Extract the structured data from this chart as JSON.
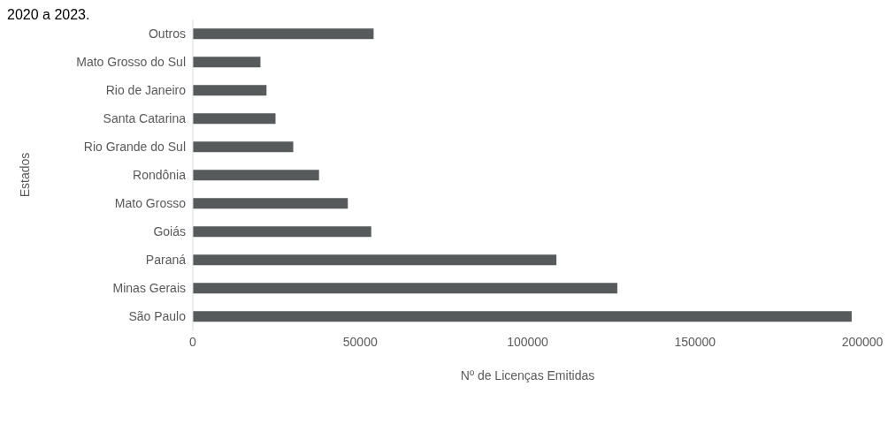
{
  "chart_data": {
    "type": "bar",
    "orientation": "horizontal",
    "xlabel": "Nº de Licenças Emitidas",
    "ylabel": "Estados",
    "annotations": [
      "2020 a 2023."
    ],
    "categories": [
      "Outros",
      "Mato Grosso do Sul",
      "Rio de Janeiro",
      "Santa Catarina",
      "Rio Grande do Sul",
      "Rondônia",
      "Mato Grosso",
      "Goiás",
      "Paraná",
      "Minas Gerais",
      "São Paulo"
    ],
    "values": [
      54000,
      20200,
      22000,
      24700,
      30000,
      37700,
      46300,
      53300,
      108600,
      126800,
      196800
    ],
    "color": "#575b5c",
    "xlim": [
      0,
      200000
    ],
    "xticks": [
      0,
      50000,
      100000,
      150000,
      200000
    ],
    "grid": false,
    "legend": false
  }
}
